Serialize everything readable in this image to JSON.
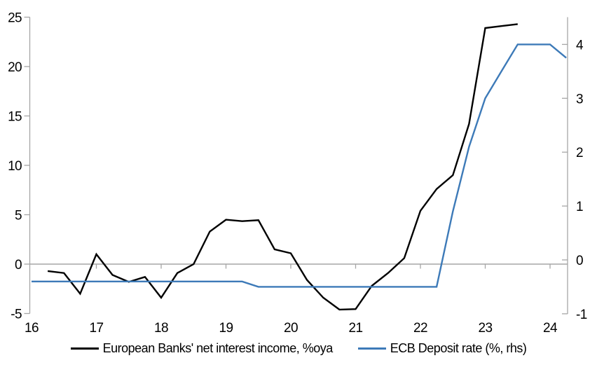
{
  "chart_data": {
    "type": "line",
    "title": "",
    "x_axis": {
      "min": 16,
      "max": 24.3,
      "tick_labels": [
        "16",
        "17",
        "18",
        "19",
        "20",
        "21",
        "22",
        "23",
        "24"
      ],
      "tick_values": [
        16,
        17,
        18,
        19,
        20,
        21,
        22,
        23,
        24
      ]
    },
    "left_axis": {
      "min": -5,
      "max": 25,
      "tick_labels": [
        "25",
        "20",
        "15",
        "10",
        "5",
        "0",
        "-5"
      ],
      "tick_values": [
        25,
        20,
        15,
        10,
        5,
        0,
        -5
      ]
    },
    "right_axis": {
      "min": -1,
      "max": 4.5,
      "tick_labels": [
        "4",
        "3",
        "2",
        "1",
        "0",
        "-1"
      ],
      "tick_values": [
        4,
        3,
        2,
        1,
        0,
        -1
      ]
    },
    "grid": "zero-line-only",
    "legend_position": "bottom",
    "series": [
      {
        "name": "European Banks' net interest income, %oya",
        "axis": "left",
        "color": "#000000",
        "x": [
          16.25,
          16.5,
          16.75,
          17.0,
          17.25,
          17.5,
          17.75,
          18.0,
          18.25,
          18.5,
          18.75,
          19.0,
          19.25,
          19.5,
          19.75,
          20.0,
          20.25,
          20.5,
          20.75,
          21.0,
          21.25,
          21.5,
          21.75,
          22.0,
          22.25,
          22.5,
          22.75,
          23.0,
          23.25,
          23.5
        ],
        "values": [
          -0.7,
          -0.9,
          -3.0,
          1.0,
          -1.1,
          -1.8,
          -1.3,
          -3.4,
          -0.9,
          0.0,
          3.3,
          4.5,
          4.35,
          4.45,
          1.5,
          1.1,
          -1.6,
          -3.4,
          -4.6,
          -4.55,
          -2.2,
          -0.9,
          0.6,
          5.4,
          7.6,
          9.0,
          14.2,
          23.9,
          24.1,
          24.3
        ]
      },
      {
        "name": "ECB Deposit rate (%, rhs)",
        "axis": "right",
        "color": "#3d7ab8",
        "x": [
          16.0,
          16.25,
          16.5,
          16.75,
          17.0,
          17.25,
          17.5,
          17.75,
          18.0,
          18.25,
          18.5,
          18.75,
          19.0,
          19.25,
          19.5,
          19.75,
          20.0,
          20.25,
          20.5,
          20.75,
          21.0,
          21.25,
          21.5,
          21.75,
          22.0,
          22.25,
          22.5,
          22.75,
          23.0,
          23.25,
          23.5,
          23.75,
          24.0,
          24.25
        ],
        "values": [
          -0.4,
          -0.4,
          -0.4,
          -0.4,
          -0.4,
          -0.4,
          -0.4,
          -0.4,
          -0.4,
          -0.4,
          -0.4,
          -0.4,
          -0.4,
          -0.4,
          -0.5,
          -0.5,
          -0.5,
          -0.5,
          -0.5,
          -0.5,
          -0.5,
          -0.5,
          -0.5,
          -0.5,
          -0.5,
          -0.5,
          0.9,
          2.1,
          3.0,
          3.5,
          4.0,
          4.0,
          4.0,
          3.75
        ]
      }
    ],
    "colors": {
      "axis_gray": "#a6a6a6",
      "zero_line_gray": "#a6a6a6",
      "text": "#000000"
    }
  }
}
